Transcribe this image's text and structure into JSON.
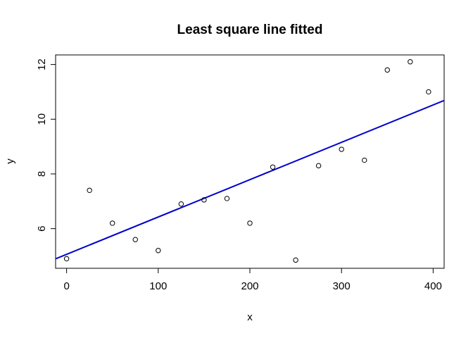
{
  "chart_data": {
    "type": "scatter",
    "title": "Least square line fitted",
    "xlabel": "x",
    "ylabel": "y",
    "xlim": [
      -12,
      412
    ],
    "ylim": [
      4.55,
      12.35
    ],
    "x_ticks": [
      0,
      100,
      200,
      300,
      400
    ],
    "y_ticks": [
      6,
      8,
      10,
      12
    ],
    "grid": false,
    "colors": {
      "points": "#000000",
      "fit_line": "#0000cd"
    },
    "points": [
      {
        "x": 0,
        "y": 4.9
      },
      {
        "x": 25,
        "y": 7.4
      },
      {
        "x": 50,
        "y": 6.2
      },
      {
        "x": 75,
        "y": 5.6
      },
      {
        "x": 100,
        "y": 5.2
      },
      {
        "x": 125,
        "y": 6.9
      },
      {
        "x": 150,
        "y": 7.05
      },
      {
        "x": 175,
        "y": 7.1
      },
      {
        "x": 200,
        "y": 6.2
      },
      {
        "x": 225,
        "y": 8.25
      },
      {
        "x": 250,
        "y": 4.85
      },
      {
        "x": 275,
        "y": 8.3
      },
      {
        "x": 300,
        "y": 8.9
      },
      {
        "x": 325,
        "y": 8.5
      },
      {
        "x": 350,
        "y": 11.8
      },
      {
        "x": 375,
        "y": 12.1
      },
      {
        "x": 395,
        "y": 11.0
      }
    ],
    "fit_line": {
      "intercept": 5.06,
      "slope": 0.01365
    }
  }
}
